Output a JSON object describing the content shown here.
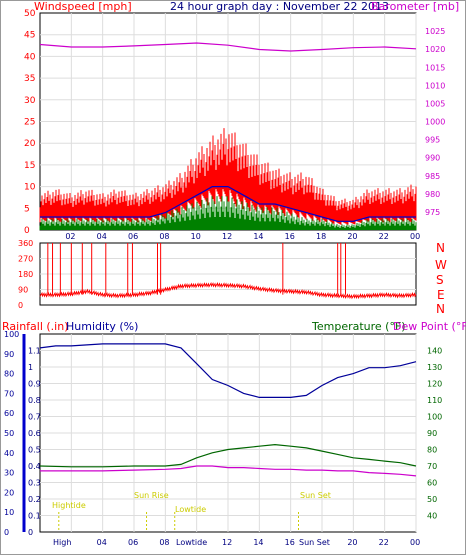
{
  "colors": {
    "wind": "#ff0000",
    "wind_avg": "#0000cc",
    "wind_low": "#008000",
    "pressure": "#cc00cc",
    "humidity": "#000099",
    "temperature": "#006600",
    "dewpoint": "#cc00cc",
    "rain_axis": "#0000cc",
    "tide_text": "#cccc00",
    "header_text": "#000080"
  },
  "header": {
    "windspeed_label": "Windspeed [mph]",
    "title": "24 hour graph day : November 22 2013",
    "barometer_label": "Barometer [mb]"
  },
  "direction_labels": [
    "N",
    "W",
    "S",
    "E",
    "N"
  ],
  "lower_header": {
    "rainfall_label": "Rainfall (.in)",
    "humidity_label": "Humidity (%)",
    "temperature_label": "Temperature (°F)",
    "dewpoint_label": "Dew Point (°F)"
  },
  "tide_events": [
    {
      "label": "Hightide",
      "hour": 1.2
    },
    {
      "label": "Sun Rise",
      "hour": 6.8
    },
    {
      "label": "Lowtide",
      "hour": 8.6
    },
    {
      "label": "Sun Set",
      "hour": 16.5
    }
  ],
  "bottom_axis_labels": [
    "High",
    "04",
    "06",
    "08",
    "Lowtide",
    "14",
    "16",
    "Sun Set",
    "22",
    "00"
  ],
  "chart_data": [
    {
      "type": "line",
      "title": "24 hour graph day : November 22 2013",
      "x_ticks": [
        "02",
        "04",
        "06",
        "08",
        "10",
        "12",
        "14",
        "16",
        "18",
        "20",
        "22",
        "00"
      ],
      "xlim": [
        0,
        24
      ],
      "ylim_left": [
        0,
        50
      ],
      "yticks_left": [
        0,
        5,
        10,
        15,
        20,
        25,
        30,
        35,
        40,
        45,
        50
      ],
      "ylabel_left": "Windspeed [mph]",
      "ylim_right": [
        970,
        1030
      ],
      "yticks_right": [
        975,
        980,
        985,
        990,
        995,
        1000,
        1005,
        1010,
        1015,
        1020,
        1025
      ],
      "ylabel_right": "Barometer [mb]",
      "series": [
        {
          "key": "wind_gust",
          "axis": "left",
          "x": [
            0,
            1,
            2,
            3,
            4,
            5,
            6,
            7,
            8,
            9,
            10,
            11,
            12,
            13,
            14,
            15,
            16,
            17,
            18,
            19,
            20,
            21,
            22,
            23,
            24
          ],
          "y": [
            7,
            8,
            7,
            8,
            7,
            8,
            7,
            8,
            9,
            11,
            15,
            18,
            20,
            17,
            14,
            12,
            11,
            11,
            8,
            6,
            6,
            8,
            8,
            8,
            9
          ]
        },
        {
          "key": "wind_avg",
          "axis": "left",
          "x": [
            0,
            1,
            2,
            3,
            4,
            5,
            6,
            7,
            8,
            9,
            10,
            11,
            12,
            13,
            14,
            15,
            16,
            17,
            18,
            19,
            20,
            21,
            22,
            23,
            24
          ],
          "y": [
            3,
            3,
            3,
            3,
            3,
            3,
            3,
            3,
            4,
            6,
            8,
            10,
            10,
            8,
            6,
            6,
            5,
            4,
            3,
            2,
            2,
            3,
            3,
            3,
            3
          ]
        },
        {
          "key": "wind_low",
          "axis": "left",
          "x": [
            0,
            1,
            2,
            3,
            4,
            5,
            6,
            7,
            8,
            9,
            10,
            11,
            12,
            13,
            14,
            15,
            16,
            17,
            18,
            19,
            20,
            21,
            22,
            23,
            24
          ],
          "y": [
            2,
            2,
            2,
            2,
            2,
            2,
            2,
            2,
            3,
            4,
            5,
            6,
            6,
            5,
            4,
            4,
            3,
            2,
            2,
            1,
            1,
            2,
            2,
            2,
            2
          ]
        },
        {
          "key": "pressure",
          "axis": "right",
          "x": [
            0,
            2,
            4,
            6,
            8,
            10,
            12,
            14,
            16,
            18,
            20,
            22,
            24
          ],
          "y": [
            1021.3,
            1020.6,
            1020.6,
            1020.9,
            1021.3,
            1021.7,
            1021.1,
            1019.9,
            1019.5,
            1019.9,
            1020.4,
            1020.6,
            1020.1
          ]
        }
      ]
    },
    {
      "type": "scatter",
      "x_ticks": [],
      "xlim": [
        0,
        24
      ],
      "ylim": [
        0,
        360
      ],
      "yticks": [
        0,
        90,
        180,
        270,
        360
      ],
      "series": [
        {
          "key": "wind_direction",
          "x": [
            0,
            1,
            2,
            3,
            4,
            5,
            6,
            7,
            8,
            9,
            10,
            11,
            12,
            13,
            14,
            15,
            16,
            17,
            18,
            19,
            20,
            21,
            22,
            23,
            24
          ],
          "y": [
            60,
            60,
            65,
            80,
            60,
            55,
            60,
            70,
            90,
            110,
            115,
            118,
            115,
            110,
            95,
            85,
            80,
            75,
            60,
            55,
            50,
            55,
            60,
            55,
            60
          ]
        }
      ]
    },
    {
      "type": "line",
      "x_ticks": [
        "02",
        "04",
        "06",
        "08",
        "10",
        "12",
        "14",
        "16",
        "18",
        "20",
        "22",
        "00"
      ],
      "xlim": [
        0,
        24
      ],
      "ylim_left": [
        0,
        100
      ],
      "yticks_left": [
        0,
        10,
        20,
        30,
        40,
        50,
        60,
        70,
        80,
        90,
        100
      ],
      "ylabel_left": "Humidity (%)",
      "ylim_rain": [
        0,
        1.2
      ],
      "yticks_rain": [
        "0",
        "0.1",
        "0.2",
        "0.3",
        "0.4",
        "0.5",
        "0.6",
        "0.7",
        "0.8",
        "0.9",
        "1",
        "1.1"
      ],
      "ylabel_rain": "Rainfall (.in)",
      "ylim_right": [
        30,
        150
      ],
      "yticks_right": [
        40,
        50,
        60,
        70,
        80,
        90,
        100,
        110,
        120,
        130,
        140
      ],
      "ylabel_right": "Temperature (°F)",
      "series": [
        {
          "key": "humidity",
          "axis": "left",
          "x": [
            0,
            1,
            2,
            4,
            6,
            8,
            9,
            10,
            11,
            12,
            13,
            14,
            15,
            16,
            17,
            18,
            19,
            20,
            21,
            22,
            23,
            24
          ],
          "y": [
            93,
            94,
            94,
            95,
            95,
            95,
            93,
            85,
            77,
            74,
            70,
            68,
            68,
            68,
            69,
            74,
            78,
            80,
            83,
            83,
            84,
            86
          ]
        },
        {
          "key": "temperature",
          "axis": "right",
          "x": [
            0,
            2,
            4,
            6,
            8,
            9,
            10,
            11,
            12,
            13,
            14,
            15,
            16,
            17,
            18,
            19,
            20,
            21,
            22,
            23,
            24
          ],
          "y": [
            70,
            69.5,
            69.5,
            70,
            70,
            71,
            75,
            78,
            80,
            81,
            82,
            83,
            82,
            81,
            79,
            77,
            75,
            74,
            73,
            72,
            70
          ]
        },
        {
          "key": "dewpoint",
          "axis": "right",
          "x": [
            0,
            2,
            4,
            6,
            8,
            9,
            10,
            11,
            12,
            13,
            14,
            15,
            16,
            17,
            18,
            19,
            20,
            21,
            22,
            23,
            24
          ],
          "y": [
            67,
            67,
            67,
            67.5,
            68,
            68.5,
            70,
            70,
            69,
            69,
            68.5,
            68,
            68,
            67.5,
            67.5,
            67,
            67,
            66,
            65.5,
            65,
            64
          ]
        }
      ]
    }
  ]
}
